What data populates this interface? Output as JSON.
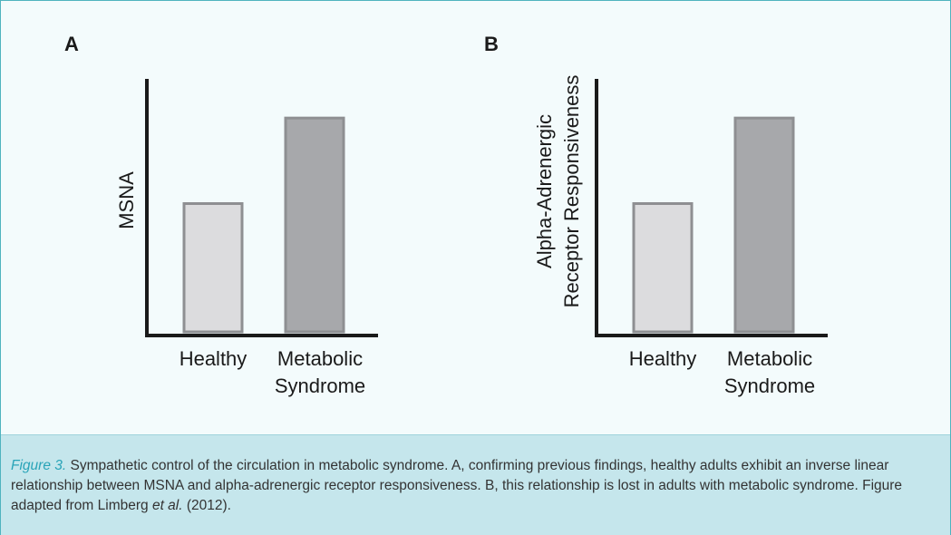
{
  "chart_data": [
    {
      "type": "bar",
      "panel_label": "A",
      "ylabel": [
        "MSNA"
      ],
      "categories": [
        [
          "Healthy"
        ],
        [
          "Metabolic",
          "Syndrome"
        ]
      ],
      "values": [
        0.6,
        1.0
      ],
      "colors": [
        "#dcdcde",
        "#a7a8ab"
      ],
      "ylim": [
        0,
        1.2
      ]
    },
    {
      "type": "bar",
      "panel_label": "B",
      "ylabel": [
        "Alpha-Adrenergic",
        "Receptor Responsiveness"
      ],
      "categories": [
        [
          "Healthy"
        ],
        [
          "Metabolic",
          "Syndrome"
        ]
      ],
      "values": [
        0.6,
        1.0
      ],
      "colors": [
        "#dcdcde",
        "#a7a8ab"
      ],
      "ylim": [
        0,
        1.2
      ]
    }
  ],
  "caption": {
    "figure_label": "Figure 3.",
    "text_1": " Sympathetic control of the circulation in metabolic syndrome. A, confirming previous findings, healthy adults exhibit an inverse linear relationship between MSNA and alpha-adrenergic receptor responsiveness. B, this relationship is lost in adults with metabolic syndrome. Figure adapted from Limberg ",
    "et_al": "et al.",
    "text_2": " (2012)."
  },
  "colors": {
    "frame_border": "#4fb3be",
    "caption_background": "#c5e6ec",
    "figure_label": "#2aa4b8",
    "axis": "#1a1a1a",
    "bar_outline": "#8e8f92"
  }
}
